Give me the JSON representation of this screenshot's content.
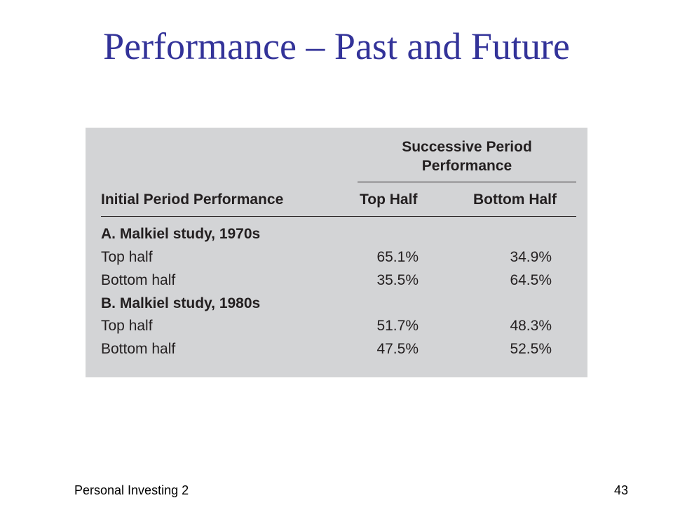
{
  "slide": {
    "title": "Performance – Past and Future",
    "footer_left": "Personal Investing 2",
    "page_number": "43"
  },
  "table": {
    "group_header_line1": "Successive Period",
    "group_header_line2": "Performance",
    "columns": [
      "Initial Period Performance",
      "Top Half",
      "Bottom Half"
    ],
    "sections": [
      {
        "heading": "A. Malkiel study, 1970s",
        "rows": [
          {
            "label": "Top half",
            "top": "65.1%",
            "bottom": "34.9%"
          },
          {
            "label": "Bottom half",
            "top": "35.5%",
            "bottom": "64.5%"
          }
        ]
      },
      {
        "heading": "B. Malkiel study, 1980s",
        "rows": [
          {
            "label": "Top half",
            "top": "51.7%",
            "bottom": "48.3%"
          },
          {
            "label": "Bottom half",
            "top": "47.5%",
            "bottom": "52.5%"
          }
        ]
      }
    ]
  },
  "colors": {
    "title": "#333399",
    "table_background": "#d3d4d6",
    "table_text": "#231f20"
  }
}
